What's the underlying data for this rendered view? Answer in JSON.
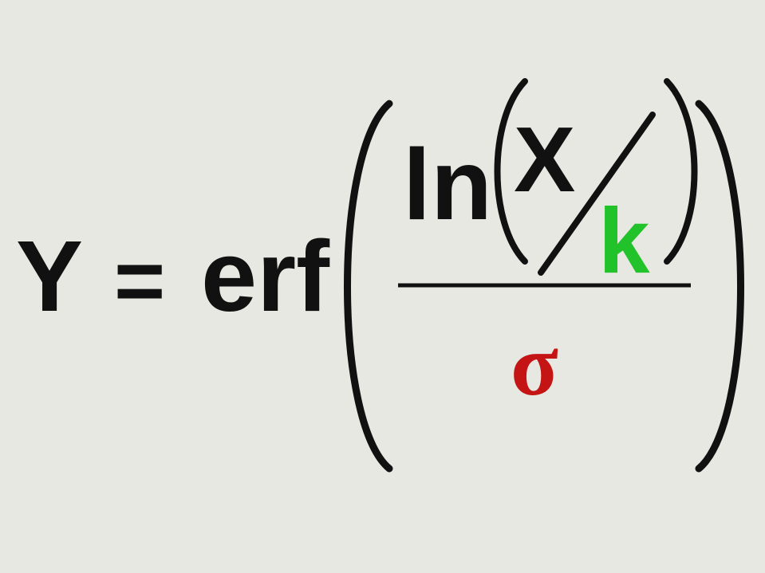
{
  "formula": {
    "lhs": "Y",
    "equals": "=",
    "function": "erf",
    "numerator": {
      "ln": "ln",
      "x": "X",
      "k": "k"
    },
    "denominator": "σ"
  },
  "colors": {
    "background": "#e8e8e3",
    "text": "#111111",
    "k": "#22c22a",
    "sigma": "#c41414"
  }
}
